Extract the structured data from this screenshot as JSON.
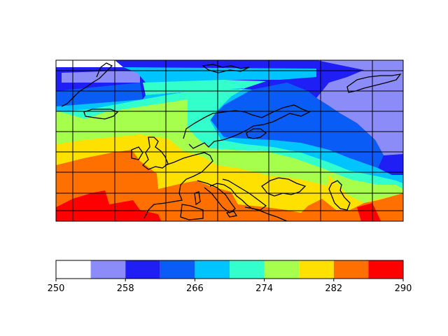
{
  "map": {
    "projection": "rotated-pole",
    "gridlines": true,
    "coastlines": true,
    "region": "Europe"
  },
  "colorbar": {
    "orientation": "horizontal",
    "location": "bottom",
    "min": 250,
    "max": 290,
    "levels": [
      250,
      254,
      258,
      262,
      266,
      270,
      274,
      278,
      282,
      286,
      290
    ],
    "tick_values": [
      250,
      258,
      266,
      274,
      282,
      290
    ],
    "tick_labels": [
      "250",
      "258",
      "266",
      "274",
      "282",
      "290"
    ],
    "colors": [
      "#ffffff",
      "#8c8cf8",
      "#1e1ef5",
      "#0a5cf7",
      "#00c4ff",
      "#33ffcc",
      "#a6ff4d",
      "#ffe100",
      "#ff7000",
      "#ff0000"
    ]
  },
  "chart_data": {
    "type": "heatmap",
    "title": "",
    "xlabel": "",
    "ylabel": "",
    "value_range": [
      250,
      290
    ],
    "bands_north_to_south": [
      {
        "level": [
          258,
          262
        ],
        "color": "#1e1ef5"
      },
      {
        "level": [
          266,
          270
        ],
        "color": "#00c4ff"
      },
      {
        "level": [
          270,
          274
        ],
        "color": "#33ffcc"
      },
      {
        "level": [
          274,
          278
        ],
        "color": "#a6ff4d"
      },
      {
        "level": [
          278,
          282
        ],
        "color": "#ffe100"
      },
      {
        "level": [
          282,
          286
        ],
        "color": "#ff7000"
      },
      {
        "level": [
          286,
          290
        ],
        "color": "#ff0000"
      }
    ]
  }
}
